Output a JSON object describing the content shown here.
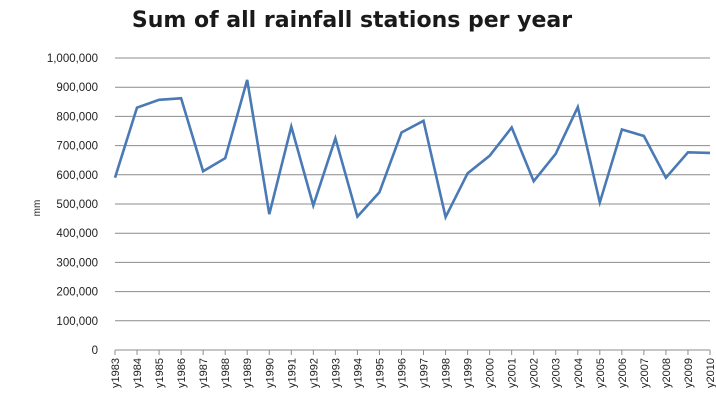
{
  "chart_data": {
    "type": "line",
    "title": "Sum of all rainfall stations per year",
    "xlabel": "",
    "ylabel": "mm",
    "ylim": [
      0,
      1000000
    ],
    "grid": true,
    "legend": "none",
    "yticks": [
      "0",
      "100,000",
      "200,000",
      "300,000",
      "400,000",
      "500,000",
      "600,000",
      "700,000",
      "800,000",
      "900,000",
      "1,000,000"
    ],
    "categories": [
      "y1983",
      "y1984",
      "y1985",
      "y1986",
      "y1987",
      "y1988",
      "y1989",
      "y1990",
      "y1991",
      "y1992",
      "y1993",
      "y1994",
      "y1995",
      "y1996",
      "y1997",
      "y1998",
      "y1999",
      "y2000",
      "y2001",
      "y2002",
      "y2003",
      "y2004",
      "y2005",
      "y2006",
      "y2007",
      "y2008",
      "y2009",
      "y2010"
    ],
    "series": [
      {
        "color": "#4a7ab5",
        "values": [
          590000,
          830000,
          857000,
          862000,
          612000,
          657000,
          925000,
          465000,
          765000,
          495000,
          725000,
          457000,
          540000,
          745000,
          785000,
          455000,
          605000,
          665000,
          762000,
          578000,
          672000,
          832000,
          505000,
          755000,
          733000,
          590000,
          677000,
          675000
        ]
      }
    ]
  }
}
